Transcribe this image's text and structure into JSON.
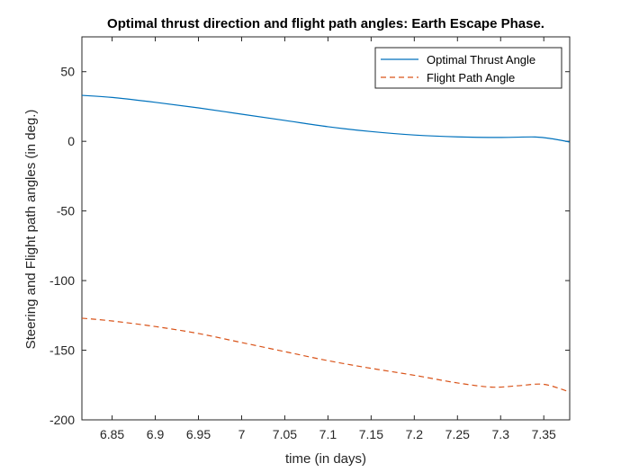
{
  "chart_data": {
    "type": "line",
    "title": "Optimal thrust direction and flight path angles: Earth Escape Phase.",
    "xlabel": "time (in days)",
    "ylabel": "Steering and Flight path angles (in deg.)",
    "xlim": [
      6.815,
      7.38
    ],
    "ylim": [
      -200,
      75
    ],
    "xticks": [
      6.85,
      6.9,
      6.95,
      7,
      7.05,
      7.1,
      7.15,
      7.2,
      7.25,
      7.3,
      7.35
    ],
    "xtick_labels": [
      "6.85",
      "6.9",
      "6.95",
      "7",
      "7.05",
      "7.1",
      "7.15",
      "7.2",
      "7.25",
      "7.3",
      "7.35"
    ],
    "yticks": [
      50,
      0,
      -50,
      -100,
      -150,
      -200
    ],
    "ytick_labels": [
      "50",
      "0",
      "-50",
      "-100",
      "-150",
      "-200"
    ],
    "grid": false,
    "legend_position": "top-right",
    "series": [
      {
        "name": "Optimal Thrust Angle",
        "color": "#0072BD",
        "style": "solid",
        "x": [
          6.815,
          6.85,
          6.9,
          6.95,
          7.0,
          7.05,
          7.1,
          7.15,
          7.2,
          7.25,
          7.3,
          7.34,
          7.36,
          7.38
        ],
        "y": [
          33,
          31.5,
          28,
          24,
          19.5,
          15,
          10.5,
          7,
          4.5,
          3.2,
          2.8,
          3.1,
          1.8,
          -0.5
        ]
      },
      {
        "name": "Flight Path Angle",
        "color": "#D95319",
        "style": "dashed",
        "x": [
          6.815,
          6.85,
          6.9,
          6.95,
          7.0,
          7.05,
          7.1,
          7.15,
          7.2,
          7.25,
          7.29,
          7.32,
          7.35,
          7.38
        ],
        "y": [
          -127,
          -129,
          -133,
          -138,
          -144.5,
          -151,
          -157.5,
          -163,
          -168,
          -173.5,
          -176.5,
          -175.5,
          -174.5,
          -180
        ]
      }
    ]
  }
}
